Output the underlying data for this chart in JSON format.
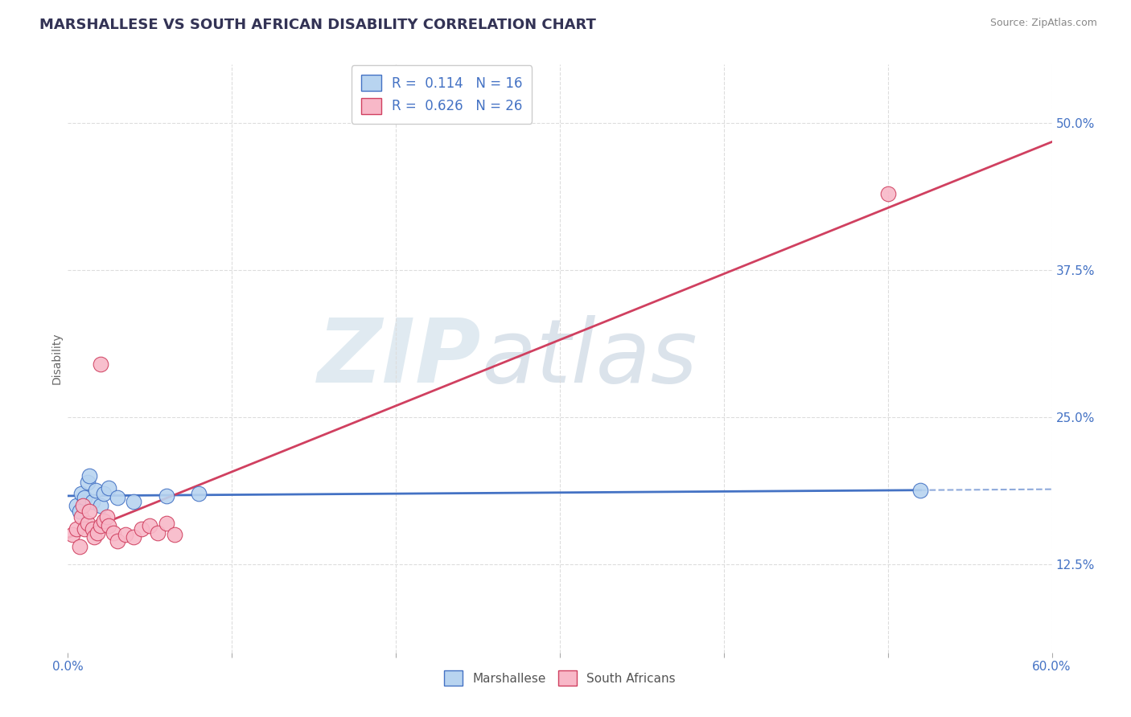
{
  "title": "MARSHALLESE VS SOUTH AFRICAN DISABILITY CORRELATION CHART",
  "source": "Source: ZipAtlas.com",
  "ylabel_label": "Disability",
  "xlim": [
    0.0,
    0.6
  ],
  "ylim": [
    0.05,
    0.55
  ],
  "xtick_vals": [
    0.0,
    0.1,
    0.2,
    0.3,
    0.4,
    0.5,
    0.6
  ],
  "xtick_labels": [
    "0.0%",
    "",
    "",
    "",
    "",
    "",
    "60.0%"
  ],
  "ytick_labels_right": [
    "12.5%",
    "25.0%",
    "37.5%",
    "50.0%"
  ],
  "ytick_vals_right": [
    0.125,
    0.25,
    0.375,
    0.5
  ],
  "color_marshallese_fill": "#b8d4f0",
  "color_southafrican_fill": "#f8b8c8",
  "color_line_marshallese": "#4472c4",
  "color_line_southafrican": "#d04060",
  "color_watermark": "#ccdde8",
  "watermark_text": "ZIPatlas",
  "background_color": "#ffffff",
  "grid_color": "#dddddd",
  "marshallese_x": [
    0.005,
    0.007,
    0.008,
    0.01,
    0.012,
    0.013,
    0.015,
    0.017,
    0.02,
    0.022,
    0.025,
    0.03,
    0.04,
    0.06,
    0.08,
    0.52
  ],
  "marshallese_y": [
    0.175,
    0.17,
    0.185,
    0.182,
    0.195,
    0.2,
    0.178,
    0.188,
    0.175,
    0.185,
    0.19,
    0.182,
    0.178,
    0.183,
    0.185,
    0.188
  ],
  "southafrican_x": [
    0.003,
    0.005,
    0.007,
    0.008,
    0.009,
    0.01,
    0.012,
    0.013,
    0.015,
    0.016,
    0.018,
    0.02,
    0.022,
    0.024,
    0.025,
    0.028,
    0.03,
    0.035,
    0.04,
    0.045,
    0.05,
    0.055,
    0.06,
    0.065,
    0.02,
    0.5
  ],
  "southafrican_y": [
    0.15,
    0.155,
    0.14,
    0.165,
    0.175,
    0.155,
    0.16,
    0.17,
    0.155,
    0.148,
    0.152,
    0.158,
    0.162,
    0.165,
    0.158,
    0.152,
    0.145,
    0.15,
    0.148,
    0.155,
    0.158,
    0.152,
    0.16,
    0.15,
    0.295,
    0.44
  ]
}
